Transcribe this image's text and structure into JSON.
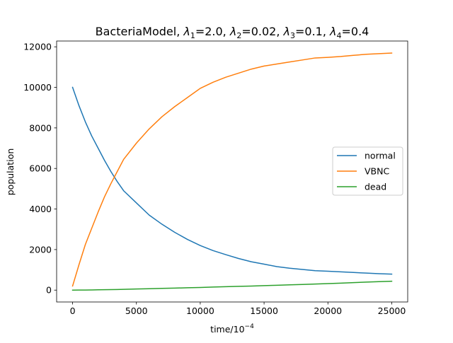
{
  "chart_data": {
    "type": "line",
    "title": "BacteriaModel, λ₁=2.0, λ₂=0.02, λ₃=0.1, λ₄=0.4",
    "title_parts": {
      "prefix": "BacteriaModel, ",
      "terms": [
        {
          "sym": "λ",
          "sub": "1",
          "val": "2.0"
        },
        {
          "sym": "λ",
          "sub": "2",
          "val": "0.02"
        },
        {
          "sym": "λ",
          "sub": "3",
          "val": "0.1"
        },
        {
          "sym": "λ",
          "sub": "4",
          "val": "0.4"
        }
      ]
    },
    "xlabel": "time/10",
    "xlabel_exp": "−4",
    "ylabel": "population",
    "xlim": [
      -1250,
      26250
    ],
    "ylim": [
      -585,
      12285
    ],
    "xticks": [
      0,
      5000,
      10000,
      15000,
      20000,
      25000
    ],
    "xtick_labels": [
      "0",
      "5000",
      "10000",
      "15000",
      "20000",
      "25000"
    ],
    "yticks": [
      0,
      2000,
      4000,
      6000,
      8000,
      10000,
      12000
    ],
    "ytick_labels": [
      "0",
      "2000",
      "4000",
      "6000",
      "8000",
      "10000",
      "12000"
    ],
    "grid": false,
    "legend_position": "center-right",
    "x": [
      0,
      500,
      1000,
      1500,
      2000,
      2500,
      3000,
      3500,
      4000,
      5000,
      6000,
      7000,
      8000,
      9000,
      10000,
      11000,
      12000,
      13000,
      14000,
      15000,
      16000,
      17000,
      18000,
      19000,
      20000,
      21000,
      22000,
      23000,
      24000,
      25000
    ],
    "series": [
      {
        "name": "normal",
        "color": "#1f77b4",
        "values": [
          10000,
          9100,
          8300,
          7600,
          7000,
          6400,
          5850,
          5350,
          4900,
          4300,
          3700,
          3250,
          2850,
          2500,
          2200,
          1950,
          1750,
          1560,
          1400,
          1280,
          1160,
          1080,
          1020,
          960,
          930,
          900,
          870,
          840,
          810,
          790
        ]
      },
      {
        "name": "VBNC",
        "color": "#ff7f0e",
        "values": [
          200,
          1250,
          2250,
          3050,
          3850,
          4600,
          5250,
          5850,
          6450,
          7250,
          7950,
          8550,
          9050,
          9500,
          9950,
          10250,
          10500,
          10700,
          10900,
          11050,
          11150,
          11250,
          11350,
          11450,
          11480,
          11520,
          11580,
          11630,
          11660,
          11690
        ]
      },
      {
        "name": "dead",
        "color": "#2ca02c",
        "values": [
          0,
          2,
          5,
          10,
          15,
          20,
          25,
          30,
          40,
          55,
          70,
          85,
          100,
          115,
          130,
          150,
          170,
          185,
          200,
          220,
          240,
          260,
          280,
          300,
          320,
          345,
          370,
          395,
          420,
          440
        ]
      }
    ]
  }
}
